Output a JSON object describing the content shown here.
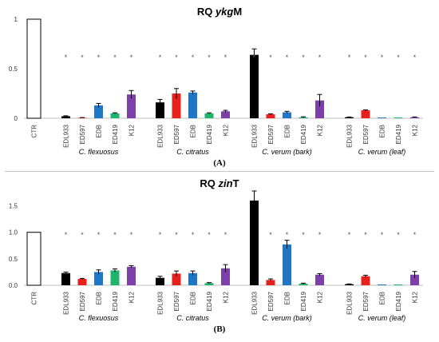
{
  "chart_data": [
    {
      "type": "bar",
      "panel_label": "(A)",
      "title_prefix": "RQ",
      "title_gene": "ykg",
      "title_suffix": "M",
      "ylim": [
        0,
        1
      ],
      "yticks": [
        0,
        0.5,
        1
      ],
      "ytick_labels": [
        "0",
        "0.5",
        "1"
      ],
      "control": {
        "label": "CTR",
        "value": 1.0,
        "color": "#ffffff"
      },
      "group_labels": [
        "C. flexuosus",
        "C. citratus",
        "C. verum (bark)",
        "C. verum   (leaf)"
      ],
      "categories": [
        "EDL933",
        "ED597",
        "EDB",
        "ED419",
        "K12"
      ],
      "series_colors": [
        "#000000",
        "#e8201c",
        "#1f77c4",
        "#1fb36b",
        "#7d3fa8"
      ],
      "groups": [
        {
          "values": [
            0.02,
            0.005,
            0.13,
            0.05,
            0.24
          ],
          "errors": [
            0.005,
            0.002,
            0.02,
            0.005,
            0.04
          ],
          "stars": [
            "*",
            "*",
            "*",
            "*",
            "*"
          ]
        },
        {
          "values": [
            0.16,
            0.25,
            0.26,
            0.05,
            0.07
          ],
          "errors": [
            0.03,
            0.05,
            0.015,
            0.005,
            0.01
          ],
          "stars": [
            "*",
            "*",
            "*",
            "*",
            "*"
          ]
        },
        {
          "values": [
            0.64,
            0.04,
            0.06,
            0.01,
            0.18
          ],
          "errors": [
            0.06,
            0.005,
            0.01,
            0.005,
            0.06
          ],
          "stars": [
            "*",
            "*",
            "*",
            "*",
            "*"
          ]
        },
        {
          "values": [
            0.01,
            0.08,
            0.0,
            0.0,
            0.01
          ],
          "errors": [
            0.003,
            0.005,
            0.0,
            0.0,
            0.003
          ],
          "stars": [
            "*",
            "*",
            "*",
            "*",
            "*"
          ]
        }
      ]
    },
    {
      "type": "bar",
      "panel_label": "(B)",
      "title_prefix": "RQ",
      "title_gene": "zin",
      "title_suffix": "T",
      "ylim": [
        0,
        1.75
      ],
      "yticks": [
        0,
        0.5,
        1.0,
        1.5
      ],
      "ytick_labels": [
        "0.0",
        "0.5",
        "1.0",
        "1.5"
      ],
      "control": {
        "label": "CTR",
        "value": 1.0,
        "color": "#ffffff"
      },
      "group_labels": [
        "C. flexuosus",
        "C. citratus",
        "C. verum (bark)",
        "C. verum   (leaf)"
      ],
      "categories": [
        "EDL933",
        "ED597",
        "EDB",
        "ED419",
        "K12"
      ],
      "series_colors": [
        "#000000",
        "#e8201c",
        "#1f77c4",
        "#1fb36b",
        "#7d3fa8"
      ],
      "groups": [
        {
          "values": [
            0.23,
            0.12,
            0.25,
            0.28,
            0.35
          ],
          "errors": [
            0.02,
            0.01,
            0.04,
            0.03,
            0.02
          ],
          "stars": [
            "*",
            "*",
            "*",
            "*",
            "*"
          ]
        },
        {
          "values": [
            0.14,
            0.22,
            0.23,
            0.04,
            0.32
          ],
          "errors": [
            0.03,
            0.05,
            0.04,
            0.01,
            0.07
          ],
          "stars": [
            "*",
            "*",
            "*",
            "*",
            "*"
          ]
        },
        {
          "values": [
            1.6,
            0.1,
            0.77,
            0.03,
            0.2
          ],
          "errors": [
            0.18,
            0.02,
            0.08,
            0.01,
            0.02
          ],
          "stars": [
            "",
            "*",
            "*",
            "*",
            "*"
          ]
        },
        {
          "values": [
            0.02,
            0.17,
            0.0,
            0.0,
            0.2
          ],
          "errors": [
            0.005,
            0.02,
            0.0,
            0.0,
            0.06
          ],
          "stars": [
            "*",
            "*",
            "*",
            "*",
            "*"
          ]
        }
      ]
    }
  ]
}
